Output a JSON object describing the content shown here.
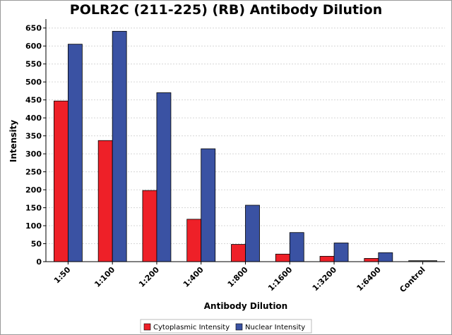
{
  "chart_data": {
    "type": "bar",
    "title": "POLR2C (211-225) (RB) Antibody Dilution",
    "xlabel": "Antibody Dilution",
    "ylabel": "Intensity",
    "categories": [
      "1:50",
      "1:100",
      "1:200",
      "1:400",
      "1:800",
      "1:1600",
      "1:3200",
      "1:6400",
      "Control"
    ],
    "series": [
      {
        "name": "Cytoplasmic Intensity",
        "color": "#ee2028",
        "values": [
          447,
          337,
          198,
          118,
          48,
          21,
          15,
          9,
          null
        ]
      },
      {
        "name": "Nuclear Intensity",
        "color": "#3a52a3",
        "values": [
          605,
          641,
          470,
          314,
          157,
          81,
          52,
          25,
          null
        ]
      }
    ],
    "control_value": 3,
    "control_color": "#555555",
    "ylim": [
      0,
      675
    ],
    "yticks": [
      0,
      50,
      100,
      150,
      200,
      250,
      300,
      350,
      400,
      450,
      500,
      550,
      600,
      650
    ],
    "grid": true,
    "legend_position": "bottom-center"
  }
}
